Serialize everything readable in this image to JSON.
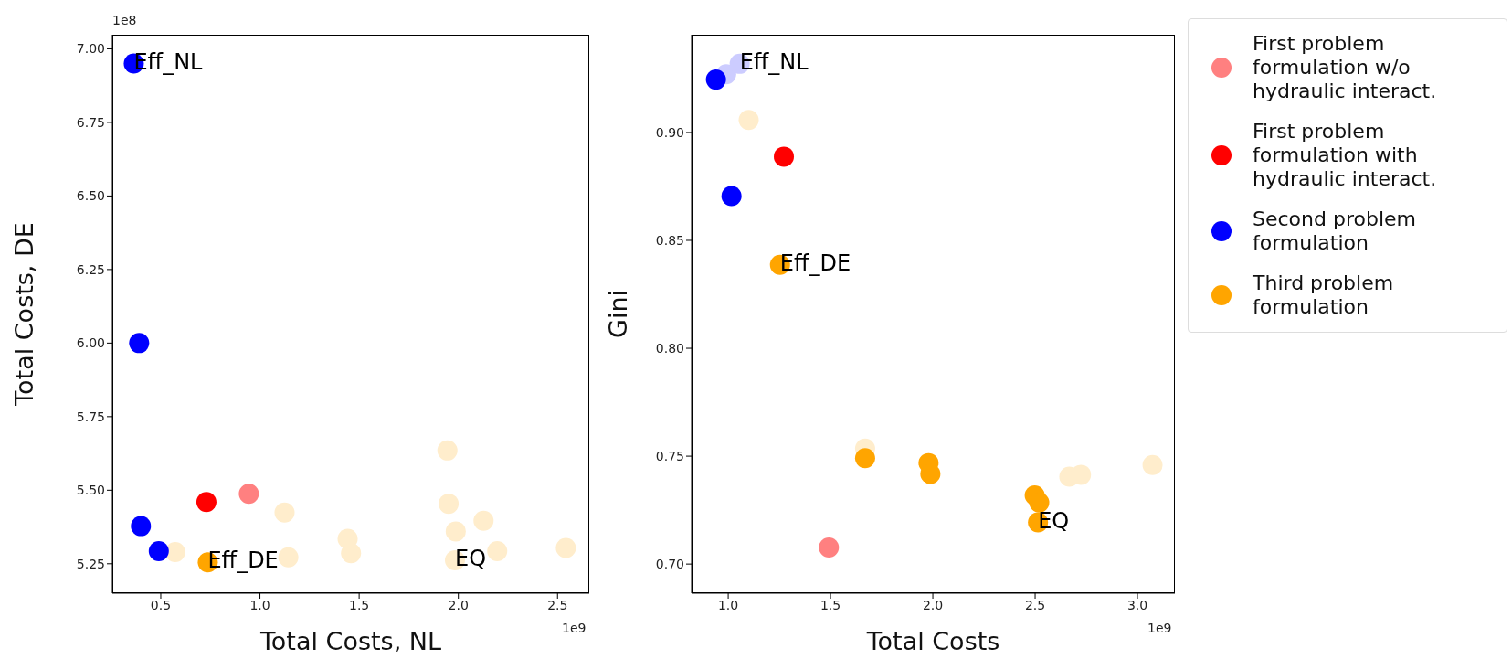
{
  "chart_data": [
    {
      "type": "scatter",
      "xlabel": "Total Costs, NL",
      "ylabel": "Total Costs, DE",
      "xlim": [
        0.256,
        2.66
      ],
      "xticks": [
        {
          "value": 0.5,
          "label": "0.5"
        },
        {
          "value": 1.0,
          "label": "1.0"
        },
        {
          "value": 1.5,
          "label": "1.5"
        },
        {
          "value": 2.0,
          "label": "2.0"
        },
        {
          "value": 2.5,
          "label": "2.5"
        }
      ],
      "ylim": [
        5.15,
        7.048
      ],
      "yticks": [
        {
          "value": 5.25,
          "label": "5.25"
        },
        {
          "value": 5.5,
          "label": "5.50"
        },
        {
          "value": 5.75,
          "label": "5.75"
        },
        {
          "value": 6.0,
          "label": "6.00"
        },
        {
          "value": 6.25,
          "label": "6.25"
        },
        {
          "value": 6.5,
          "label": "6.50"
        },
        {
          "value": 6.75,
          "label": "6.75"
        },
        {
          "value": 7.0,
          "label": "7.00"
        }
      ],
      "marker": "circle",
      "grid": false,
      "legend": false,
      "series": [
        {
          "color": "#ffedcc",
          "x": [
            0.573,
            1.124,
            1.143,
            1.442,
            1.459,
            1.945,
            1.951,
            1.987,
            2.127,
            1.983,
            2.196,
            2.542
          ],
          "values": [
            5.29,
            5.424,
            5.272,
            5.335,
            5.286,
            5.635,
            5.454,
            5.36,
            5.396,
            5.262,
            5.293,
            5.304
          ]
        },
        {
          "color": "#ff8080",
          "x": [
            0.944
          ],
          "values": [
            5.488
          ]
        },
        {
          "color": "#ff0000",
          "x": [
            0.73
          ],
          "values": [
            5.46
          ]
        },
        {
          "color": "#0000ff",
          "x": [
            0.364,
            0.391,
            0.4,
            0.49
          ],
          "values": [
            6.95,
            6.0,
            5.378,
            5.293
          ]
        },
        {
          "color": "#ffa500",
          "x": [
            0.737
          ],
          "values": [
            5.255
          ]
        }
      ],
      "annotations": [
        {
          "text": "Eff_NL",
          "x": 0.364,
          "y": 6.95
        },
        {
          "text": "Eff_DE",
          "x": 0.737,
          "y": 5.255
        },
        {
          "text": "EQ",
          "x": 1.983,
          "y": 5.262
        },
        "1e8",
        "1e9"
      ]
    },
    {
      "type": "scatter",
      "xlabel": "Total Costs",
      "ylabel": "Gini",
      "xlim": [
        0.821,
        3.183
      ],
      "xticks": [
        {
          "value": 1.0,
          "label": "1.0"
        },
        {
          "value": 1.5,
          "label": "1.5"
        },
        {
          "value": 2.0,
          "label": "2.0"
        },
        {
          "value": 2.5,
          "label": "2.5"
        },
        {
          "value": 3.0,
          "label": "3.0"
        }
      ],
      "ylim": [
        0.6865,
        0.9453
      ],
      "yticks": [
        {
          "value": 0.7,
          "label": "0.70"
        },
        {
          "value": 0.75,
          "label": "0.75"
        },
        {
          "value": 0.8,
          "label": "0.80"
        },
        {
          "value": 0.85,
          "label": "0.85"
        },
        {
          "value": 0.9,
          "label": "0.90"
        }
      ],
      "marker": "circle",
      "grid": false,
      "legend": "right",
      "series": [
        {
          "color": "#ffedcc",
          "x": [
            1.1,
            1.669,
            2.667,
            2.724,
            3.074
          ],
          "values": [
            0.9058,
            0.7535,
            0.7405,
            0.7414,
            0.7459
          ]
        },
        {
          "color": "#ccccff",
          "x": [
            0.99,
            1.056
          ],
          "values": [
            0.927,
            0.9318
          ]
        },
        {
          "name": "First problem formulation w/o hydraulic interact.",
          "color": "#ff8080",
          "x": [
            1.492
          ],
          "values": [
            0.7077
          ]
        },
        {
          "name": "First problem formulation with hydraulic interact.",
          "color": "#ff0000",
          "x": [
            1.272
          ],
          "values": [
            0.8888
          ]
        },
        {
          "name": "Second problem formulation",
          "color": "#0000ff",
          "x": [
            0.94,
            1.016
          ],
          "values": [
            0.9245,
            0.8705
          ]
        },
        {
          "name": "Third problem formulation",
          "color": "#ffa500",
          "x": [
            1.253,
            1.669,
            1.979,
            1.988,
            2.498,
            2.52,
            2.514
          ],
          "values": [
            0.8387,
            0.7491,
            0.7468,
            0.7418,
            0.7318,
            0.7285,
            0.7193
          ]
        }
      ],
      "annotations": [
        {
          "text": "Eff_NL",
          "x": 1.056,
          "y": 0.9318
        },
        {
          "text": "Eff_DE",
          "x": 1.253,
          "y": 0.8387
        },
        {
          "text": "EQ",
          "x": 2.514,
          "y": 0.7193
        },
        "1e9"
      ]
    }
  ]
}
